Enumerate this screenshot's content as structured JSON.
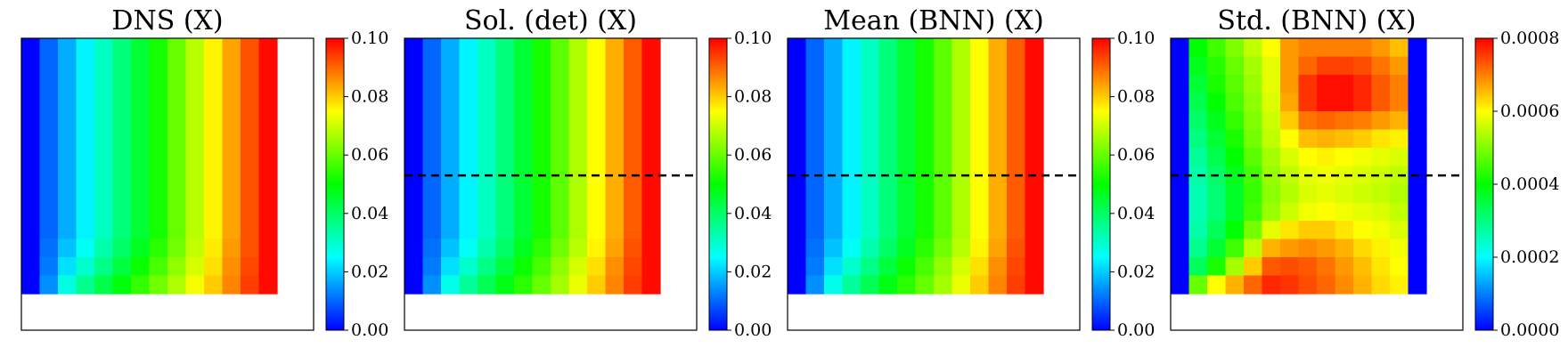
{
  "chart_data": [
    {
      "type": "heatmap",
      "title": "DNS (X)",
      "colorbar": {
        "min": 0.0,
        "max": 0.1,
        "ticks": [
          "0.00",
          "0.02",
          "0.04",
          "0.06",
          "0.08",
          "0.10"
        ]
      },
      "colormap": [
        "#0000ff",
        "#00ffff",
        "#00ff00",
        "#ffff00",
        "#ff0000"
      ],
      "grid": {
        "rows": 14,
        "cols": 14,
        "active_rows": 14,
        "active_cols": 14
      },
      "values": [
        [
          0.0,
          0.01,
          0.017,
          0.024,
          0.031,
          0.038,
          0.045,
          0.052,
          0.06,
          0.068,
          0.076,
          0.084,
          0.092,
          0.099
        ],
        [
          0.0,
          0.01,
          0.017,
          0.024,
          0.031,
          0.038,
          0.045,
          0.052,
          0.06,
          0.068,
          0.076,
          0.084,
          0.092,
          0.099
        ],
        [
          0.0,
          0.01,
          0.017,
          0.024,
          0.031,
          0.038,
          0.045,
          0.052,
          0.06,
          0.068,
          0.076,
          0.084,
          0.092,
          0.099
        ],
        [
          0.0,
          0.01,
          0.017,
          0.024,
          0.031,
          0.038,
          0.045,
          0.052,
          0.06,
          0.068,
          0.076,
          0.084,
          0.092,
          0.099
        ],
        [
          0.0,
          0.01,
          0.017,
          0.024,
          0.031,
          0.038,
          0.045,
          0.052,
          0.06,
          0.068,
          0.076,
          0.084,
          0.092,
          0.099
        ],
        [
          0.0,
          0.01,
          0.017,
          0.024,
          0.031,
          0.038,
          0.045,
          0.052,
          0.06,
          0.068,
          0.076,
          0.084,
          0.092,
          0.099
        ],
        [
          0.0,
          0.01,
          0.017,
          0.024,
          0.031,
          0.038,
          0.045,
          0.052,
          0.06,
          0.068,
          0.076,
          0.084,
          0.092,
          0.099
        ],
        [
          0.0,
          0.01,
          0.017,
          0.024,
          0.031,
          0.038,
          0.045,
          0.052,
          0.06,
          0.068,
          0.076,
          0.084,
          0.092,
          0.099
        ],
        [
          0.0,
          0.01,
          0.017,
          0.024,
          0.031,
          0.038,
          0.045,
          0.052,
          0.06,
          0.068,
          0.076,
          0.084,
          0.092,
          0.099
        ],
        [
          0.0,
          0.01,
          0.017,
          0.024,
          0.031,
          0.038,
          0.045,
          0.052,
          0.06,
          0.068,
          0.076,
          0.084,
          0.092,
          0.099
        ],
        [
          0.0,
          0.01,
          0.017,
          0.024,
          0.031,
          0.038,
          0.045,
          0.052,
          0.06,
          0.068,
          0.076,
          0.084,
          0.092,
          0.099
        ],
        [
          0.0,
          0.011,
          0.019,
          0.026,
          0.033,
          0.04,
          0.047,
          0.054,
          0.061,
          0.069,
          0.077,
          0.085,
          0.092,
          0.099
        ],
        [
          0.0,
          0.012,
          0.022,
          0.03,
          0.037,
          0.044,
          0.051,
          0.057,
          0.064,
          0.071,
          0.078,
          0.086,
          0.093,
          0.099
        ],
        [
          0.0,
          0.014,
          0.028,
          0.036,
          0.043,
          0.049,
          0.055,
          0.061,
          0.067,
          0.074,
          0.08,
          0.087,
          0.094,
          0.099
        ],
        [
          null,
          null,
          null,
          null,
          null,
          null,
          null,
          null,
          null,
          null,
          null,
          null,
          null,
          null
        ],
        [
          null,
          null,
          null,
          null,
          null,
          null,
          null,
          null,
          null,
          null,
          null,
          null,
          null,
          null
        ]
      ]
    },
    {
      "type": "heatmap",
      "title": "Sol. (det) (X)",
      "colorbar": {
        "min": 0.0,
        "max": 0.1,
        "ticks": [
          "0.00",
          "0.02",
          "0.04",
          "0.06",
          "0.08",
          "0.10"
        ]
      },
      "colormap": [
        "#0000ff",
        "#00ffff",
        "#00ff00",
        "#ffff00",
        "#ff0000"
      ],
      "dashed_line_y_fraction": 0.47,
      "grid": {
        "rows": 14,
        "cols": 14,
        "active_rows": 14,
        "active_cols": 14
      },
      "values": [
        [
          0.0,
          0.01,
          0.017,
          0.024,
          0.031,
          0.038,
          0.045,
          0.052,
          0.059,
          0.067,
          0.075,
          0.083,
          0.091,
          0.099
        ],
        [
          0.0,
          0.01,
          0.017,
          0.024,
          0.031,
          0.038,
          0.045,
          0.052,
          0.059,
          0.067,
          0.075,
          0.083,
          0.091,
          0.099
        ],
        [
          0.0,
          0.01,
          0.017,
          0.024,
          0.031,
          0.038,
          0.045,
          0.052,
          0.059,
          0.067,
          0.075,
          0.083,
          0.091,
          0.099
        ],
        [
          0.0,
          0.01,
          0.017,
          0.024,
          0.031,
          0.038,
          0.045,
          0.052,
          0.059,
          0.067,
          0.075,
          0.083,
          0.091,
          0.099
        ],
        [
          0.0,
          0.01,
          0.017,
          0.024,
          0.031,
          0.038,
          0.045,
          0.052,
          0.059,
          0.067,
          0.075,
          0.083,
          0.091,
          0.099
        ],
        [
          0.0,
          0.01,
          0.017,
          0.024,
          0.031,
          0.038,
          0.045,
          0.052,
          0.059,
          0.067,
          0.075,
          0.083,
          0.091,
          0.099
        ],
        [
          0.0,
          0.01,
          0.017,
          0.024,
          0.031,
          0.038,
          0.045,
          0.052,
          0.059,
          0.067,
          0.075,
          0.083,
          0.091,
          0.099
        ],
        [
          0.0,
          0.01,
          0.017,
          0.024,
          0.031,
          0.038,
          0.045,
          0.052,
          0.059,
          0.067,
          0.075,
          0.083,
          0.091,
          0.099
        ],
        [
          0.0,
          0.01,
          0.017,
          0.024,
          0.031,
          0.038,
          0.045,
          0.052,
          0.059,
          0.067,
          0.075,
          0.083,
          0.091,
          0.099
        ],
        [
          0.0,
          0.01,
          0.017,
          0.024,
          0.031,
          0.038,
          0.045,
          0.052,
          0.059,
          0.067,
          0.075,
          0.083,
          0.091,
          0.099
        ],
        [
          0.0,
          0.01,
          0.017,
          0.024,
          0.031,
          0.038,
          0.045,
          0.052,
          0.059,
          0.067,
          0.075,
          0.083,
          0.091,
          0.099
        ],
        [
          0.0,
          0.011,
          0.019,
          0.026,
          0.033,
          0.04,
          0.047,
          0.054,
          0.061,
          0.068,
          0.076,
          0.084,
          0.092,
          0.099
        ],
        [
          0.0,
          0.012,
          0.022,
          0.03,
          0.037,
          0.044,
          0.051,
          0.057,
          0.064,
          0.071,
          0.078,
          0.086,
          0.093,
          0.099
        ],
        [
          0.0,
          0.014,
          0.027,
          0.035,
          0.042,
          0.048,
          0.054,
          0.06,
          0.066,
          0.073,
          0.08,
          0.087,
          0.094,
          0.099
        ],
        [
          null,
          null,
          null,
          null,
          null,
          null,
          null,
          null,
          null,
          null,
          null,
          null,
          null,
          null
        ],
        [
          null,
          null,
          null,
          null,
          null,
          null,
          null,
          null,
          null,
          null,
          null,
          null,
          null,
          null
        ]
      ]
    },
    {
      "type": "heatmap",
      "title": "Mean (BNN) (X)",
      "colorbar": {
        "min": 0.0,
        "max": 0.1,
        "ticks": [
          "0.00",
          "0.02",
          "0.04",
          "0.06",
          "0.08",
          "0.10"
        ]
      },
      "colormap": [
        "#0000ff",
        "#00ffff",
        "#00ff00",
        "#ffff00",
        "#ff0000"
      ],
      "dashed_line_y_fraction": 0.47,
      "grid": {
        "rows": 14,
        "cols": 14,
        "active_rows": 14,
        "active_cols": 14
      },
      "values": [
        [
          0.0,
          0.01,
          0.017,
          0.024,
          0.031,
          0.038,
          0.045,
          0.052,
          0.059,
          0.067,
          0.075,
          0.083,
          0.091,
          0.099
        ],
        [
          0.0,
          0.01,
          0.017,
          0.024,
          0.031,
          0.038,
          0.045,
          0.052,
          0.059,
          0.067,
          0.075,
          0.083,
          0.091,
          0.099
        ],
        [
          0.0,
          0.01,
          0.017,
          0.024,
          0.031,
          0.038,
          0.045,
          0.052,
          0.059,
          0.067,
          0.075,
          0.083,
          0.091,
          0.099
        ],
        [
          0.0,
          0.01,
          0.017,
          0.024,
          0.031,
          0.038,
          0.045,
          0.052,
          0.059,
          0.067,
          0.075,
          0.083,
          0.091,
          0.099
        ],
        [
          0.0,
          0.01,
          0.017,
          0.024,
          0.031,
          0.038,
          0.045,
          0.052,
          0.059,
          0.067,
          0.075,
          0.083,
          0.091,
          0.099
        ],
        [
          0.0,
          0.01,
          0.017,
          0.024,
          0.031,
          0.038,
          0.045,
          0.052,
          0.059,
          0.067,
          0.075,
          0.083,
          0.091,
          0.099
        ],
        [
          0.0,
          0.01,
          0.017,
          0.024,
          0.031,
          0.038,
          0.045,
          0.052,
          0.059,
          0.067,
          0.075,
          0.083,
          0.091,
          0.099
        ],
        [
          0.0,
          0.01,
          0.017,
          0.024,
          0.031,
          0.038,
          0.045,
          0.052,
          0.059,
          0.067,
          0.075,
          0.083,
          0.091,
          0.099
        ],
        [
          0.0,
          0.01,
          0.017,
          0.024,
          0.031,
          0.038,
          0.045,
          0.052,
          0.059,
          0.067,
          0.075,
          0.083,
          0.091,
          0.099
        ],
        [
          0.0,
          0.01,
          0.017,
          0.024,
          0.031,
          0.038,
          0.045,
          0.052,
          0.059,
          0.067,
          0.075,
          0.083,
          0.091,
          0.099
        ],
        [
          0.0,
          0.01,
          0.017,
          0.024,
          0.031,
          0.038,
          0.045,
          0.052,
          0.059,
          0.067,
          0.075,
          0.083,
          0.091,
          0.099
        ],
        [
          0.0,
          0.011,
          0.019,
          0.026,
          0.033,
          0.04,
          0.047,
          0.054,
          0.061,
          0.068,
          0.076,
          0.084,
          0.092,
          0.099
        ],
        [
          0.0,
          0.012,
          0.022,
          0.03,
          0.037,
          0.044,
          0.051,
          0.057,
          0.064,
          0.071,
          0.078,
          0.086,
          0.093,
          0.099
        ],
        [
          0.0,
          0.014,
          0.027,
          0.035,
          0.042,
          0.048,
          0.054,
          0.06,
          0.066,
          0.073,
          0.08,
          0.087,
          0.094,
          0.099
        ],
        [
          null,
          null,
          null,
          null,
          null,
          null,
          null,
          null,
          null,
          null,
          null,
          null,
          null,
          null
        ],
        [
          null,
          null,
          null,
          null,
          null,
          null,
          null,
          null,
          null,
          null,
          null,
          null,
          null,
          null
        ]
      ]
    },
    {
      "type": "heatmap",
      "title": "Std. (BNN) (X)",
      "colorbar": {
        "min": 0.0,
        "max": 0.0008,
        "ticks": [
          "0.0000",
          "0.0002",
          "0.0004",
          "0.0006",
          "0.0008"
        ]
      },
      "colormap": [
        "#0000ff",
        "#00ffff",
        "#00ff00",
        "#ffff00",
        "#ff0000"
      ],
      "dashed_line_y_fraction": 0.47,
      "grid": {
        "rows": 14,
        "cols": 14,
        "active_rows": 14,
        "active_cols": 14
      },
      "values": [
        [
          0.0,
          0.0004,
          0.00045,
          0.0005,
          0.00055,
          0.0006,
          0.00068,
          0.0007,
          0.0007,
          0.0007,
          0.0007,
          0.00068,
          0.00065,
          0.0
        ],
        [
          0.0,
          0.00038,
          0.00043,
          0.00048,
          0.00053,
          0.00058,
          0.00068,
          0.00072,
          0.00075,
          0.00075,
          0.00074,
          0.00071,
          0.00068,
          0.0
        ],
        [
          0.0,
          0.00036,
          0.00042,
          0.00047,
          0.00052,
          0.00058,
          0.00068,
          0.00076,
          0.00079,
          0.00079,
          0.00077,
          0.00073,
          0.0007,
          0.0
        ],
        [
          0.0,
          0.00034,
          0.0004,
          0.00046,
          0.00051,
          0.00057,
          0.00067,
          0.00076,
          0.00079,
          0.00079,
          0.00077,
          0.00073,
          0.0007,
          0.0
        ],
        [
          0.0,
          0.00032,
          0.00038,
          0.00044,
          0.0005,
          0.00056,
          0.00064,
          0.00071,
          0.00072,
          0.00071,
          0.0007,
          0.00068,
          0.00066,
          0.0
        ],
        [
          0.0,
          0.0003,
          0.00036,
          0.00042,
          0.00049,
          0.00055,
          0.0006,
          0.00065,
          0.00066,
          0.00065,
          0.00064,
          0.00062,
          0.00061,
          0.0
        ],
        [
          0.0,
          0.00028,
          0.00034,
          0.0004,
          0.00047,
          0.00053,
          0.00057,
          0.0006,
          0.00061,
          0.0006,
          0.00059,
          0.00058,
          0.00057,
          0.0
        ],
        [
          0.0,
          0.00027,
          0.00032,
          0.00038,
          0.00045,
          0.00052,
          0.00055,
          0.00058,
          0.00059,
          0.00058,
          0.00057,
          0.00056,
          0.00055,
          0.0
        ],
        [
          0.0,
          0.00026,
          0.00031,
          0.00037,
          0.00044,
          0.00051,
          0.00054,
          0.00057,
          0.00058,
          0.00057,
          0.00056,
          0.00055,
          0.00054,
          0.0
        ],
        [
          0.0,
          0.00026,
          0.00031,
          0.00037,
          0.00045,
          0.00052,
          0.00056,
          0.00059,
          0.0006,
          0.00059,
          0.00058,
          0.00057,
          0.00055,
          0.0
        ],
        [
          0.0,
          0.00027,
          0.00033,
          0.0004,
          0.00049,
          0.00058,
          0.00062,
          0.00064,
          0.00064,
          0.00062,
          0.0006,
          0.00059,
          0.00057,
          0.0
        ],
        [
          0.0,
          0.00029,
          0.00036,
          0.00045,
          0.00055,
          0.00066,
          0.00068,
          0.00069,
          0.00068,
          0.00066,
          0.00063,
          0.00061,
          0.00059,
          0.0
        ],
        [
          0.0,
          0.00033,
          0.00042,
          0.00053,
          0.00064,
          0.00073,
          0.00074,
          0.00073,
          0.00071,
          0.00068,
          0.00065,
          0.00062,
          0.0006,
          0.0
        ],
        [
          0.0,
          0.00048,
          0.0006,
          0.00066,
          0.00072,
          0.00077,
          0.00076,
          0.00074,
          0.00072,
          0.00069,
          0.00066,
          0.00063,
          0.00061,
          0.0
        ],
        [
          null,
          null,
          null,
          null,
          null,
          null,
          null,
          null,
          null,
          null,
          null,
          null,
          null,
          null
        ],
        [
          null,
          null,
          null,
          null,
          null,
          null,
          null,
          null,
          null,
          null,
          null,
          null,
          null,
          null
        ]
      ]
    }
  ]
}
